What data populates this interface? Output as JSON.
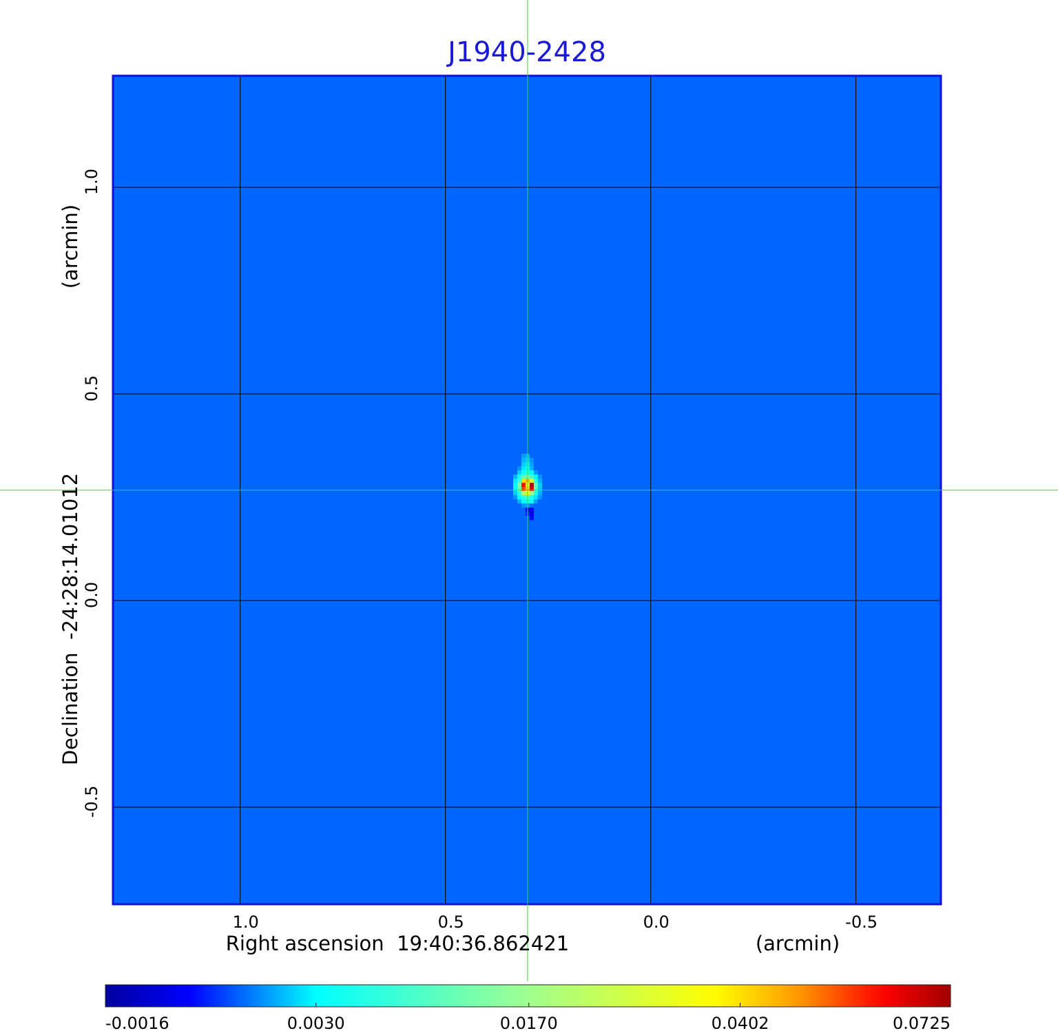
{
  "chart_data": {
    "type": "image",
    "title": "J1940-2428",
    "title_color": "#1a1ad6",
    "x_label": "Right ascension  19:40:36.862421",
    "x_unit": "(arcmin)",
    "y_label": "Declination  -24:28:14.01012",
    "y_unit": "(arcmin)",
    "xlim": [
      1.31,
      -0.707
    ],
    "ylim": [
      -0.735,
      1.27
    ],
    "xticks": [
      {
        "value": 1,
        "label": "1.0"
      },
      0.5,
      {
        "value": 0,
        "label": "0.0"
      },
      -0.5
    ],
    "yticks": [
      {
        "value": 1,
        "label": "1.0"
      },
      0.5,
      {
        "value": 0,
        "label": "0.0"
      },
      -0.5
    ],
    "grid": true,
    "grid_color": "#000000",
    "frame_color": "#1010e0",
    "colormap": "jet",
    "colorbar_scale": "sqrt",
    "colorbar_lim": [
      -0.0016,
      0.0725
    ],
    "colorbar_ticks": [
      -0.0016,
      {
        "value": 0.003,
        "label": "0.0030"
      },
      {
        "value": 0.017,
        "label": "0.0170"
      },
      0.0402,
      0.0725
    ],
    "crosshair": {
      "x": 0.3,
      "y": 0.267,
      "color": "#33dd33"
    },
    "image": {
      "background": 0.0003,
      "pixel_size": 0.01,
      "x": [
        0.33,
        0.32,
        0.31,
        0.3,
        0.29,
        0.28,
        0.27
      ],
      "y": [
        0.35,
        0.34,
        0.33,
        0.32,
        0.31,
        0.3,
        0.29,
        0.28,
        0.27,
        0.26,
        0.25,
        0.24,
        0.23,
        0.22,
        0.21,
        0.2
      ],
      "values": [
        [
          0.0003,
          0.0003,
          0.0012,
          0.0015,
          0.0003,
          0.0003,
          0.0003
        ],
        [
          0.0003,
          0.0003,
          0.0015,
          0.002,
          0.001,
          0.0003,
          0.0003
        ],
        [
          0.0003,
          0.0003,
          0.002,
          0.0025,
          0.0012,
          0.0003,
          0.0003
        ],
        [
          0.0003,
          0.001,
          0.0025,
          0.003,
          0.0015,
          0.0003,
          0.0003
        ],
        [
          0.0003,
          0.002,
          0.004,
          0.005,
          0.003,
          0.001,
          0.0003
        ],
        [
          0.0015,
          0.004,
          0.01,
          0.012,
          0.008,
          0.003,
          0.001
        ],
        [
          0.0025,
          0.008,
          0.04,
          0.045,
          0.03,
          0.006,
          0.0015
        ],
        [
          0.003,
          0.015,
          0.06,
          0.038,
          0.07,
          0.01,
          0.002
        ],
        [
          0.003,
          0.012,
          0.055,
          0.042,
          0.065,
          0.009,
          0.002
        ],
        [
          0.002,
          0.006,
          0.02,
          0.035,
          0.018,
          0.005,
          0.0015
        ],
        [
          0.001,
          0.003,
          0.006,
          0.008,
          0.005,
          0.0025,
          0.001
        ],
        [
          0.0003,
          0.0015,
          0.003,
          0.004,
          0.003,
          0.0012,
          0.0003
        ],
        [
          0.0003,
          0.0003,
          0.001,
          0.0012,
          0.0005,
          0.0003,
          0.0003
        ],
        [
          0.0003,
          0.0003,
          0.0003,
          -0.0008,
          -0.001,
          0.0003,
          0.0003
        ],
        [
          0.0003,
          0.0003,
          0.0003,
          -0.0005,
          -0.0012,
          0.0003,
          0.0003
        ],
        [
          0.0003,
          0.0003,
          0.0003,
          0.0003,
          -0.0008,
          0.0003,
          0.0003
        ]
      ]
    }
  }
}
